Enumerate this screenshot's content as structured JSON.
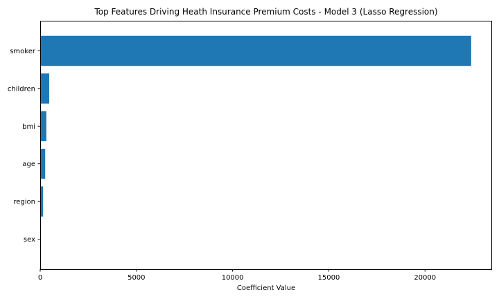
{
  "chart_data": {
    "type": "bar",
    "orientation": "horizontal",
    "title": "Top Features Driving Heath Insurance Premium Costs - Model 3 (Lasso Regression)",
    "xlabel": "Coefficient Value",
    "ylabel": "",
    "categories": [
      "smoker",
      "children",
      "bmi",
      "age",
      "region",
      "sex"
    ],
    "values": [
      22400,
      470,
      320,
      260,
      150,
      0
    ],
    "xlim": [
      0,
      23450
    ],
    "xticks": [
      0,
      5000,
      10000,
      15000,
      20000
    ],
    "grid": false,
    "bar_color": "#1f77b4"
  }
}
